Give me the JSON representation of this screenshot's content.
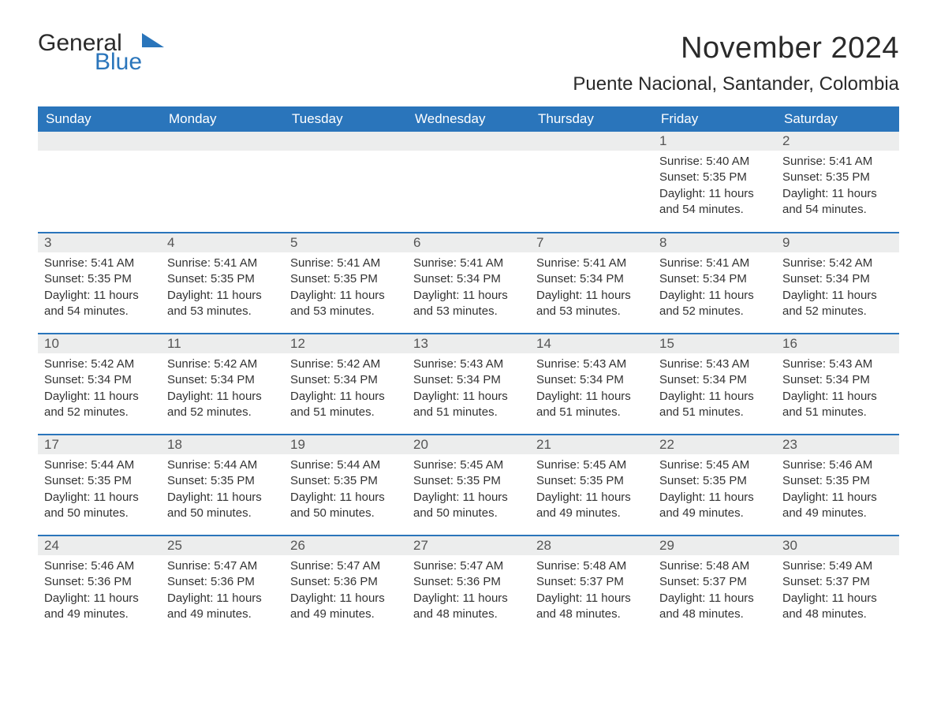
{
  "brand": {
    "general": "General",
    "blue": "Blue"
  },
  "title": "November 2024",
  "location": "Puente Nacional, Santander, Colombia",
  "colors": {
    "accent": "#2a75bb",
    "dayStripe": "#eceded",
    "text": "#333333",
    "bg": "#ffffff"
  },
  "dayHeaders": [
    "Sunday",
    "Monday",
    "Tuesday",
    "Wednesday",
    "Thursday",
    "Friday",
    "Saturday"
  ],
  "weeks": [
    [
      null,
      null,
      null,
      null,
      null,
      {
        "n": "1",
        "sr": "5:40 AM",
        "ss": "5:35 PM",
        "dl": "11 hours and 54 minutes."
      },
      {
        "n": "2",
        "sr": "5:41 AM",
        "ss": "5:35 PM",
        "dl": "11 hours and 54 minutes."
      }
    ],
    [
      {
        "n": "3",
        "sr": "5:41 AM",
        "ss": "5:35 PM",
        "dl": "11 hours and 54 minutes."
      },
      {
        "n": "4",
        "sr": "5:41 AM",
        "ss": "5:35 PM",
        "dl": "11 hours and 53 minutes."
      },
      {
        "n": "5",
        "sr": "5:41 AM",
        "ss": "5:35 PM",
        "dl": "11 hours and 53 minutes."
      },
      {
        "n": "6",
        "sr": "5:41 AM",
        "ss": "5:34 PM",
        "dl": "11 hours and 53 minutes."
      },
      {
        "n": "7",
        "sr": "5:41 AM",
        "ss": "5:34 PM",
        "dl": "11 hours and 53 minutes."
      },
      {
        "n": "8",
        "sr": "5:41 AM",
        "ss": "5:34 PM",
        "dl": "11 hours and 52 minutes."
      },
      {
        "n": "9",
        "sr": "5:42 AM",
        "ss": "5:34 PM",
        "dl": "11 hours and 52 minutes."
      }
    ],
    [
      {
        "n": "10",
        "sr": "5:42 AM",
        "ss": "5:34 PM",
        "dl": "11 hours and 52 minutes."
      },
      {
        "n": "11",
        "sr": "5:42 AM",
        "ss": "5:34 PM",
        "dl": "11 hours and 52 minutes."
      },
      {
        "n": "12",
        "sr": "5:42 AM",
        "ss": "5:34 PM",
        "dl": "11 hours and 51 minutes."
      },
      {
        "n": "13",
        "sr": "5:43 AM",
        "ss": "5:34 PM",
        "dl": "11 hours and 51 minutes."
      },
      {
        "n": "14",
        "sr": "5:43 AM",
        "ss": "5:34 PM",
        "dl": "11 hours and 51 minutes."
      },
      {
        "n": "15",
        "sr": "5:43 AM",
        "ss": "5:34 PM",
        "dl": "11 hours and 51 minutes."
      },
      {
        "n": "16",
        "sr": "5:43 AM",
        "ss": "5:34 PM",
        "dl": "11 hours and 51 minutes."
      }
    ],
    [
      {
        "n": "17",
        "sr": "5:44 AM",
        "ss": "5:35 PM",
        "dl": "11 hours and 50 minutes."
      },
      {
        "n": "18",
        "sr": "5:44 AM",
        "ss": "5:35 PM",
        "dl": "11 hours and 50 minutes."
      },
      {
        "n": "19",
        "sr": "5:44 AM",
        "ss": "5:35 PM",
        "dl": "11 hours and 50 minutes."
      },
      {
        "n": "20",
        "sr": "5:45 AM",
        "ss": "5:35 PM",
        "dl": "11 hours and 50 minutes."
      },
      {
        "n": "21",
        "sr": "5:45 AM",
        "ss": "5:35 PM",
        "dl": "11 hours and 49 minutes."
      },
      {
        "n": "22",
        "sr": "5:45 AM",
        "ss": "5:35 PM",
        "dl": "11 hours and 49 minutes."
      },
      {
        "n": "23",
        "sr": "5:46 AM",
        "ss": "5:35 PM",
        "dl": "11 hours and 49 minutes."
      }
    ],
    [
      {
        "n": "24",
        "sr": "5:46 AM",
        "ss": "5:36 PM",
        "dl": "11 hours and 49 minutes."
      },
      {
        "n": "25",
        "sr": "5:47 AM",
        "ss": "5:36 PM",
        "dl": "11 hours and 49 minutes."
      },
      {
        "n": "26",
        "sr": "5:47 AM",
        "ss": "5:36 PM",
        "dl": "11 hours and 49 minutes."
      },
      {
        "n": "27",
        "sr": "5:47 AM",
        "ss": "5:36 PM",
        "dl": "11 hours and 48 minutes."
      },
      {
        "n": "28",
        "sr": "5:48 AM",
        "ss": "5:37 PM",
        "dl": "11 hours and 48 minutes."
      },
      {
        "n": "29",
        "sr": "5:48 AM",
        "ss": "5:37 PM",
        "dl": "11 hours and 48 minutes."
      },
      {
        "n": "30",
        "sr": "5:49 AM",
        "ss": "5:37 PM",
        "dl": "11 hours and 48 minutes."
      }
    ]
  ],
  "labels": {
    "sunrise": "Sunrise:",
    "sunset": "Sunset:",
    "daylight": "Daylight:"
  }
}
